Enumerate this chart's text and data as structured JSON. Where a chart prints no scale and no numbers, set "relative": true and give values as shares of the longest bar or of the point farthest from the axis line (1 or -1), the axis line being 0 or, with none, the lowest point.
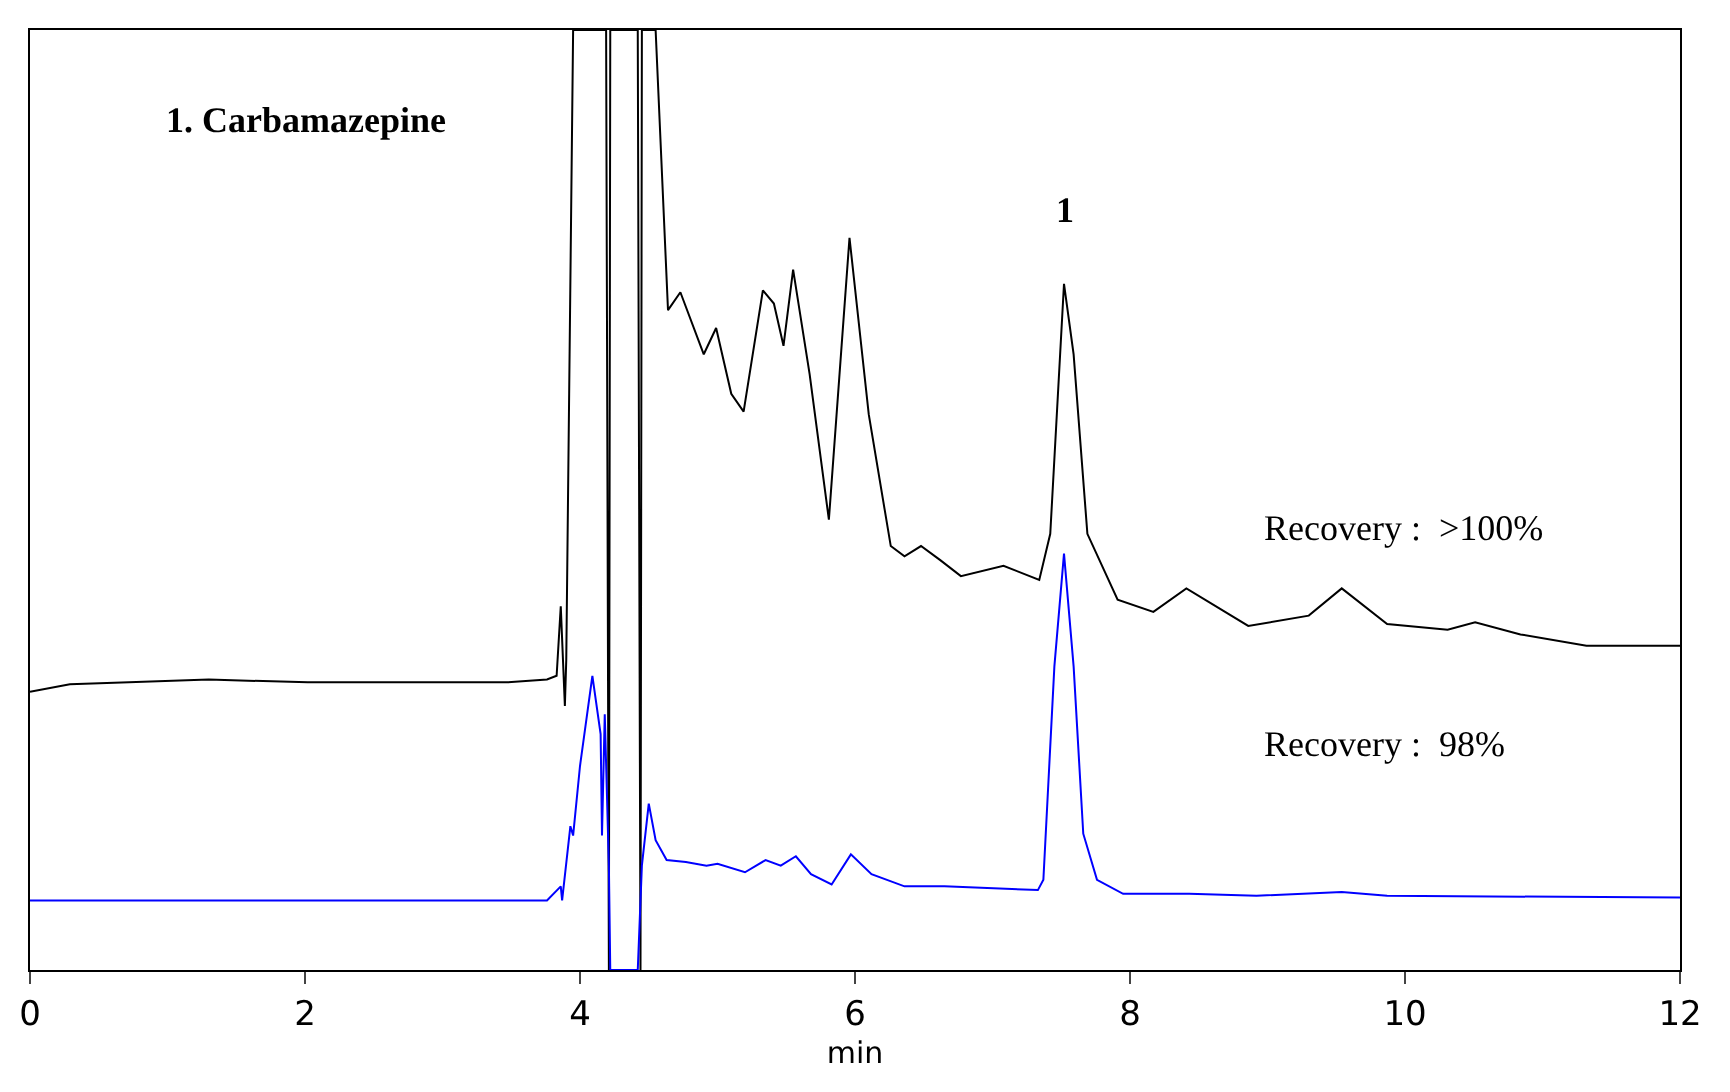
{
  "chart_data": {
    "type": "line",
    "relative": true,
    "xlabel": "min",
    "xlim": [
      0,
      12
    ],
    "xticks": [
      0,
      2,
      4,
      6,
      8,
      10,
      12
    ],
    "marker": "none",
    "line_style": "solid",
    "series": [
      {
        "color": "#000000",
        "x": [
          0,
          0.29,
          0.72,
          1.3,
          2.02,
          2.75,
          3.47,
          3.76,
          3.83,
          3.86,
          3.89,
          3.9,
          3.95,
          4.19,
          4.21,
          4.22,
          4.42,
          4.44,
          4.45,
          4.55,
          4.64,
          4.73,
          4.9,
          4.99,
          5.1,
          5.19,
          5.33,
          5.41,
          5.48,
          5.55,
          5.67,
          5.81,
          5.96,
          6.1,
          6.26,
          6.36,
          6.48,
          6.62,
          6.77,
          7.08,
          7.34,
          7.42,
          7.52,
          7.59,
          7.69,
          7.91,
          8.17,
          8.41,
          8.86,
          9.3,
          9.54,
          9.87,
          10.31,
          10.51,
          10.84,
          11.32,
          12.0
        ],
        "values": [
          0.296,
          0.304,
          0.306,
          0.309,
          0.306,
          0.306,
          0.306,
          0.309,
          0.313,
          0.387,
          0.281,
          0.33,
          1,
          1,
          0,
          1,
          1,
          0,
          1,
          1,
          0.702,
          0.721,
          0.655,
          0.683,
          0.613,
          0.594,
          0.723,
          0.709,
          0.664,
          0.745,
          0.634,
          0.479,
          0.779,
          0.591,
          0.451,
          0.44,
          0.451,
          0.436,
          0.419,
          0.43,
          0.415,
          0.464,
          0.73,
          0.655,
          0.464,
          0.394,
          0.381,
          0.406,
          0.366,
          0.377,
          0.406,
          0.368,
          0.362,
          0.37,
          0.357,
          0.345,
          0.345
        ]
      },
      {
        "color": "#0000ff",
        "x": [
          0,
          3.76,
          3.86,
          3.87,
          3.93,
          3.95,
          4.0,
          4.09,
          4.15,
          4.16,
          4.18,
          4.21,
          4.22,
          4.42,
          4.45,
          4.5,
          4.55,
          4.63,
          4.77,
          4.92,
          5.0,
          5.2,
          5.35,
          5.46,
          5.57,
          5.68,
          5.83,
          5.97,
          6.12,
          6.36,
          6.65,
          7.33,
          7.37,
          7.45,
          7.52,
          7.59,
          7.66,
          7.76,
          7.95,
          8.43,
          8.92,
          9.54,
          9.87,
          12.0
        ],
        "values": [
          0.074,
          0.074,
          0.089,
          0.074,
          0.153,
          0.143,
          0.217,
          0.313,
          0.251,
          0.143,
          0.272,
          0.111,
          0,
          0,
          0.111,
          0.177,
          0.138,
          0.117,
          0.115,
          0.111,
          0.113,
          0.104,
          0.117,
          0.111,
          0.121,
          0.102,
          0.091,
          0.123,
          0.102,
          0.089,
          0.089,
          0.085,
          0.096,
          0.323,
          0.443,
          0.323,
          0.145,
          0.096,
          0.081,
          0.081,
          0.079,
          0.083,
          0.079,
          0.077
        ]
      }
    ],
    "annotations": [
      "1. Carbamazepine",
      "1",
      "Recovery :  >100%",
      "Recovery :  98%"
    ]
  }
}
